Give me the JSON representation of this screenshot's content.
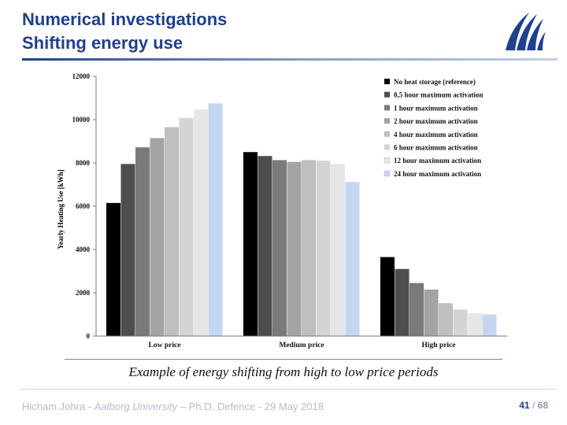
{
  "header": {
    "title_line1": "Numerical investigations",
    "title_line2": "Shifting energy use"
  },
  "caption": "Example of energy shifting from high to low price periods",
  "footer": {
    "author": "Hicham Johra - ",
    "affiliation": "Aalborg University",
    "event": " – Ph.D. Defence - 29 May 2018",
    "page": "41",
    "separator": "/",
    "total": "68"
  },
  "colors": {
    "title": "#1f3f8f",
    "series": [
      "#000000",
      "#4d4d4d",
      "#7a7a7a",
      "#a3a3a3",
      "#bfbfbf",
      "#d4d4d4",
      "#e6e6e6",
      "#c5d7f0"
    ]
  },
  "chart_data": {
    "type": "bar",
    "categories": [
      "Low price",
      "Medium price",
      "High price"
    ],
    "ylabel": "Yearly Heating Use [kWh]",
    "ylim": [
      0,
      12000
    ],
    "yticks": [
      0,
      2000,
      4000,
      6000,
      8000,
      10000,
      12000
    ],
    "grid": false,
    "legend_position": "top-right",
    "series": [
      {
        "name": "No heat storage (reference)",
        "values": [
          6150,
          8500,
          3650
        ]
      },
      {
        "name": "0,5 hour maximum activation",
        "values": [
          7950,
          8320,
          3100
        ]
      },
      {
        "name": "1 hour maximum activation",
        "values": [
          8720,
          8130,
          2450
        ]
      },
      {
        "name": "2 hour maximum activation",
        "values": [
          9150,
          8050,
          2150
        ]
      },
      {
        "name": "4 hour maximum activation",
        "values": [
          9650,
          8130,
          1520
        ]
      },
      {
        "name": "6 hour maximum activation",
        "values": [
          10080,
          8100,
          1230
        ]
      },
      {
        "name": "12 hour maximum activation",
        "values": [
          10470,
          7950,
          1050
        ]
      },
      {
        "name": "24 hour maximum activation",
        "values": [
          10750,
          7120,
          1000
        ]
      }
    ]
  }
}
